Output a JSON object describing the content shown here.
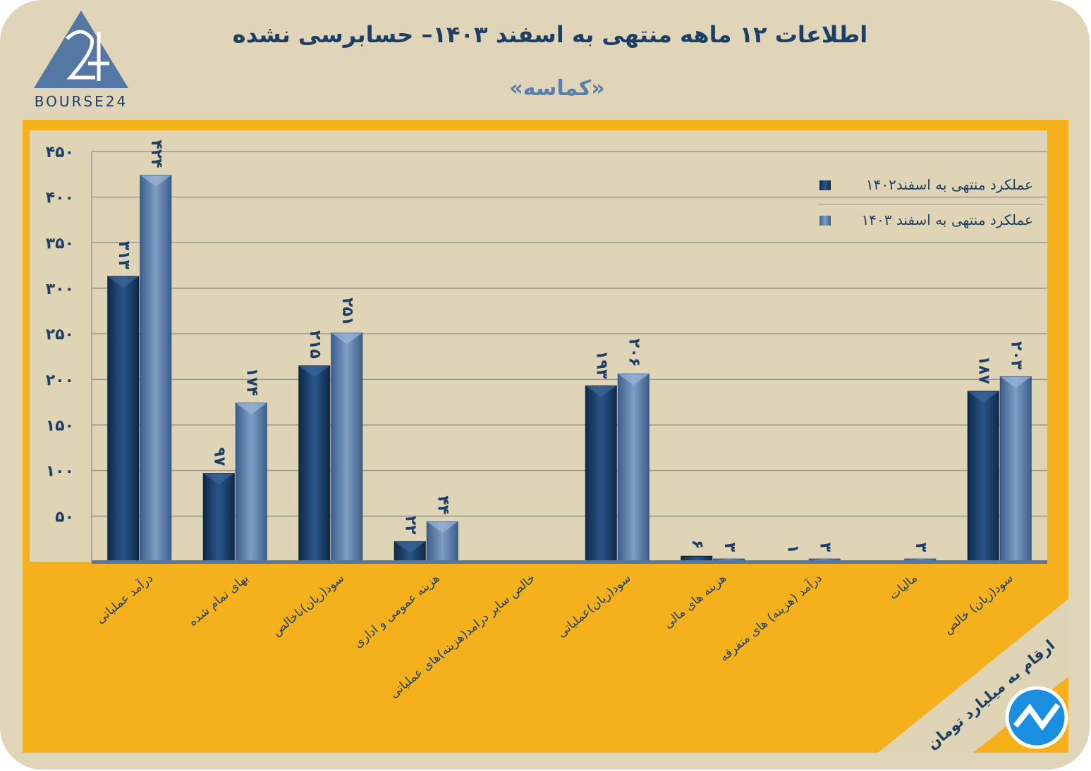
{
  "header": {
    "title": "اطلاعات ۱۲ ماهه منتهی به اسفند ۱۴۰۳– حسابرسی نشده",
    "subtitle": "«کماسه»",
    "logo_text": "BOURSE24"
  },
  "unit_note": "ارقام به میلیارد تومان",
  "colors": {
    "series1": "#173a63",
    "series2": "#5577a3",
    "plot_bg": "#dfd4b6",
    "orange": "#f5b11c",
    "text": "#1d3f66"
  },
  "chart_data": {
    "type": "bar",
    "title": "اطلاعات ۱۲ ماهه منتهی به اسفند ۱۴۰۳– حسابرسی نشده",
    "ylim": [
      0,
      450
    ],
    "yticks": [
      50,
      100,
      150,
      200,
      250,
      300,
      350,
      400,
      450
    ],
    "ytick_labels": [
      "۵۰",
      "۱۰۰",
      "۱۵۰",
      "۲۰۰",
      "۲۵۰",
      "۳۰۰",
      "۳۵۰",
      "۴۰۰",
      "۴۵۰"
    ],
    "grid": true,
    "legend_position": "top-right",
    "categories": [
      "درآمد عملیاتی",
      "بهای تمام شده",
      "سود(زیان)ناخالص",
      "هزینه عمومی و اداری",
      "خالص سایر درامد(هزینه)های عملیاتی",
      "سود(زیان)عملیاتی",
      "هزینه های مالی",
      "درآمد (هزینه) های متفرقه",
      "مالیات",
      "سود(زیان) خالص"
    ],
    "series": [
      {
        "name": "عملکرد منتهی به اسفند۱۴۰۲",
        "values": [
          313,
          97,
          215,
          22,
          0,
          193,
          6,
          1,
          0,
          187
        ],
        "labels": [
          "۳۱۳",
          "۹۷",
          "۲۱۵",
          "۲۲",
          "",
          "۱۹۳",
          "۶",
          "۱",
          "",
          "۱۸۷"
        ]
      },
      {
        "name": "عملکرد منتهی به اسفند ۱۴۰۳",
        "values": [
          424,
          174,
          251,
          44,
          0,
          206,
          3,
          3,
          3,
          203
        ],
        "labels": [
          "۴۲۴",
          "۱۷۴",
          "۲۵۱",
          "۴۴",
          "",
          "۲۰۶",
          "۳",
          "۳",
          "۳",
          "۲۰۳"
        ]
      }
    ]
  }
}
